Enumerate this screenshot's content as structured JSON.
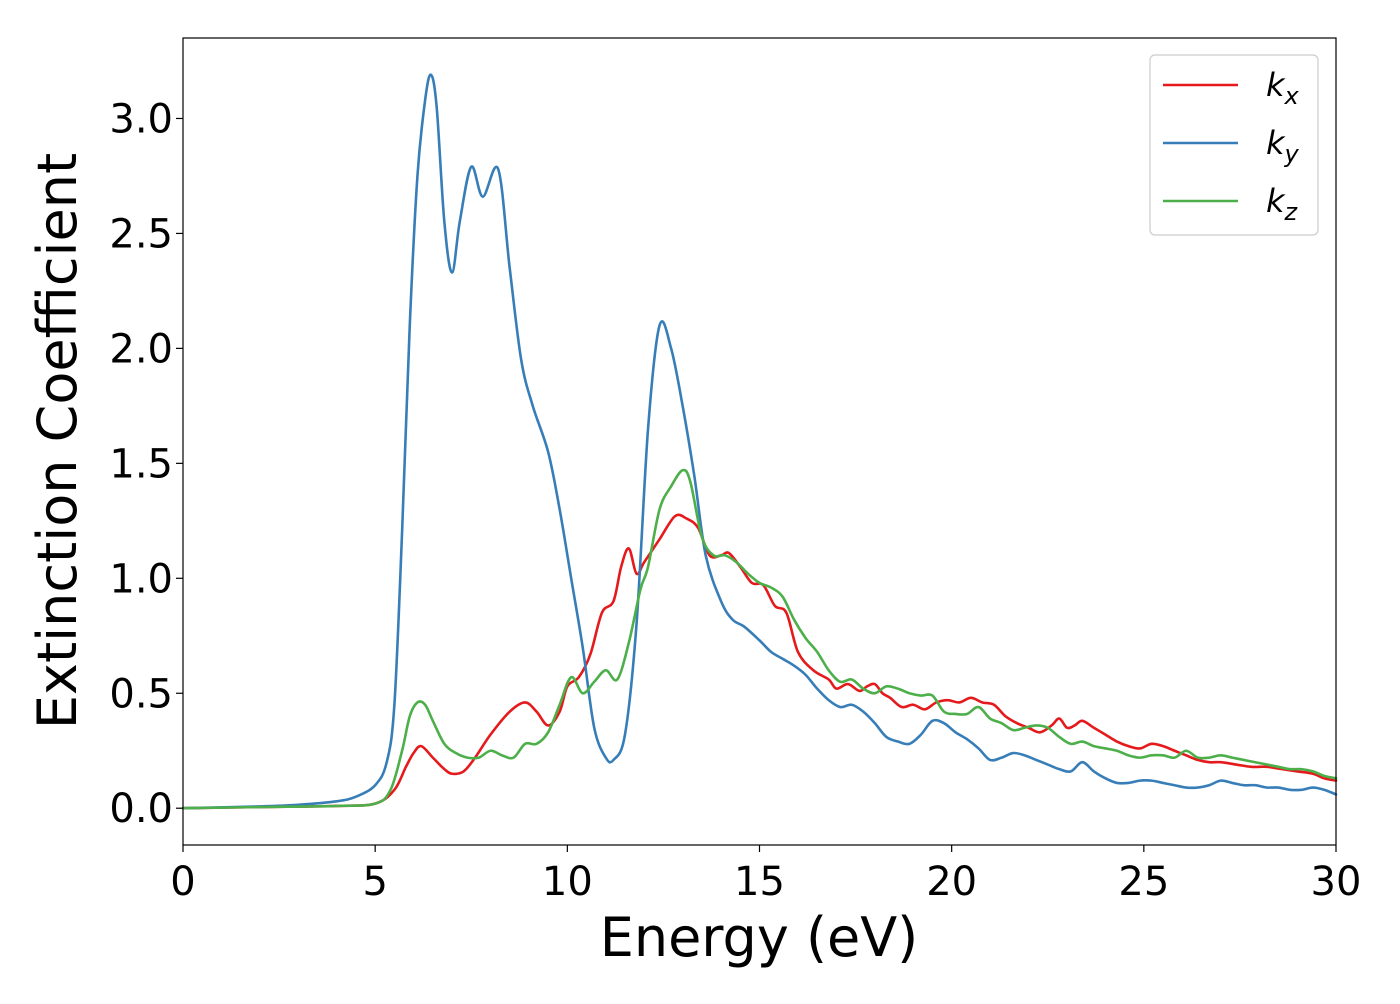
{
  "chart_data": {
    "type": "line",
    "title": "",
    "xlabel": "Energy (eV)",
    "ylabel": "Extinction Coefficient",
    "xlim": [
      0,
      30
    ],
    "ylim": [
      -0.16,
      3.35
    ],
    "xticks": [
      0,
      5,
      10,
      15,
      20,
      25,
      30
    ],
    "xtick_labels": [
      "0",
      "5",
      "10",
      "15",
      "20",
      "25",
      "30"
    ],
    "yticks": [
      0.0,
      0.5,
      1.0,
      1.5,
      2.0,
      2.5,
      3.0
    ],
    "ytick_labels": [
      "0.0",
      "0.5",
      "1.0",
      "1.5",
      "2.0",
      "2.5",
      "3.0"
    ],
    "grid": false,
    "legend_position": "top-right",
    "series": [
      {
        "name": "k_x",
        "label_base": "k",
        "label_sub": "x",
        "color": "#e41a1c",
        "x": [
          0,
          2,
          4,
          5,
          5.5,
          5.8,
          6.0,
          6.2,
          6.5,
          6.8,
          7.0,
          7.3,
          7.6,
          8.0,
          8.5,
          8.9,
          9.2,
          9.5,
          9.8,
          10.0,
          10.3,
          10.6,
          10.9,
          11.2,
          11.4,
          11.6,
          11.8,
          12.0,
          12.4,
          12.8,
          13.1,
          13.4,
          13.7,
          14.0,
          14.2,
          14.5,
          14.8,
          15.1,
          15.4,
          15.7,
          16.0,
          16.4,
          16.8,
          17.0,
          17.3,
          17.6,
          17.8,
          18.0,
          18.2,
          18.4,
          18.7,
          19.0,
          19.3,
          19.6,
          19.9,
          20.2,
          20.5,
          20.8,
          21.1,
          21.4,
          21.7,
          22.0,
          22.3,
          22.6,
          22.8,
          23.0,
          23.2,
          23.4,
          23.7,
          24.0,
          24.3,
          24.6,
          24.9,
          25.2,
          25.5,
          25.8,
          26.1,
          26.4,
          26.7,
          27.0,
          27.4,
          27.8,
          28.2,
          28.6,
          29.0,
          29.4,
          29.7,
          30.0
        ],
        "y": [
          0.0,
          0.005,
          0.01,
          0.02,
          0.08,
          0.18,
          0.24,
          0.27,
          0.22,
          0.17,
          0.15,
          0.16,
          0.22,
          0.32,
          0.42,
          0.46,
          0.42,
          0.36,
          0.42,
          0.53,
          0.57,
          0.67,
          0.85,
          0.9,
          1.05,
          1.13,
          1.02,
          1.07,
          1.17,
          1.27,
          1.26,
          1.22,
          1.1,
          1.1,
          1.11,
          1.05,
          0.98,
          0.97,
          0.88,
          0.85,
          0.68,
          0.6,
          0.56,
          0.52,
          0.54,
          0.51,
          0.53,
          0.54,
          0.5,
          0.48,
          0.44,
          0.45,
          0.43,
          0.46,
          0.47,
          0.46,
          0.48,
          0.46,
          0.45,
          0.4,
          0.37,
          0.35,
          0.33,
          0.36,
          0.39,
          0.35,
          0.36,
          0.38,
          0.35,
          0.32,
          0.29,
          0.27,
          0.26,
          0.28,
          0.27,
          0.25,
          0.23,
          0.21,
          0.2,
          0.2,
          0.19,
          0.18,
          0.18,
          0.17,
          0.16,
          0.15,
          0.13,
          0.12
        ]
      },
      {
        "name": "k_y",
        "label_base": "k",
        "label_sub": "y",
        "color": "#377eb8",
        "x": [
          0,
          2,
          3,
          4,
          4.5,
          5.0,
          5.3,
          5.5,
          5.7,
          5.9,
          6.1,
          6.3,
          6.45,
          6.6,
          6.8,
          7.0,
          7.2,
          7.5,
          7.8,
          8.2,
          8.5,
          8.8,
          9.1,
          9.5,
          9.8,
          10.1,
          10.4,
          10.7,
          11.0,
          11.2,
          11.5,
          11.8,
          12.1,
          12.4,
          12.7,
          13.0,
          13.3,
          13.6,
          14.0,
          14.3,
          14.6,
          15.0,
          15.3,
          15.6,
          15.9,
          16.2,
          16.5,
          16.8,
          17.1,
          17.4,
          17.7,
          18.0,
          18.3,
          18.6,
          18.9,
          19.2,
          19.5,
          19.8,
          20.1,
          20.4,
          20.7,
          21.0,
          21.3,
          21.6,
          21.9,
          22.2,
          22.5,
          22.8,
          23.1,
          23.4,
          23.7,
          24.0,
          24.3,
          24.6,
          24.9,
          25.2,
          25.5,
          25.8,
          26.1,
          26.4,
          26.7,
          27.0,
          27.3,
          27.6,
          27.9,
          28.2,
          28.5,
          28.8,
          29.1,
          29.4,
          29.7,
          30.0
        ],
        "y": [
          0.0,
          0.008,
          0.015,
          0.03,
          0.05,
          0.1,
          0.2,
          0.45,
          1.2,
          2.1,
          2.75,
          3.08,
          3.19,
          3.05,
          2.55,
          2.33,
          2.55,
          2.79,
          2.66,
          2.78,
          2.35,
          1.95,
          1.75,
          1.55,
          1.3,
          1.0,
          0.7,
          0.35,
          0.22,
          0.21,
          0.32,
          0.8,
          1.65,
          2.1,
          2.0,
          1.75,
          1.45,
          1.1,
          0.9,
          0.82,
          0.79,
          0.73,
          0.68,
          0.65,
          0.62,
          0.58,
          0.52,
          0.47,
          0.44,
          0.45,
          0.42,
          0.37,
          0.31,
          0.29,
          0.28,
          0.32,
          0.38,
          0.37,
          0.33,
          0.3,
          0.26,
          0.21,
          0.22,
          0.24,
          0.23,
          0.21,
          0.19,
          0.17,
          0.16,
          0.2,
          0.16,
          0.13,
          0.11,
          0.11,
          0.12,
          0.12,
          0.11,
          0.1,
          0.09,
          0.09,
          0.1,
          0.12,
          0.11,
          0.1,
          0.1,
          0.09,
          0.09,
          0.08,
          0.08,
          0.09,
          0.08,
          0.06
        ]
      },
      {
        "name": "k_z",
        "label_base": "k",
        "label_sub": "z",
        "color": "#4daf4a",
        "x": [
          0,
          2,
          4,
          5,
          5.4,
          5.7,
          5.9,
          6.1,
          6.3,
          6.5,
          6.8,
          7.1,
          7.4,
          7.7,
          8.0,
          8.3,
          8.6,
          8.9,
          9.2,
          9.5,
          9.8,
          10.1,
          10.4,
          10.7,
          11.0,
          11.3,
          11.6,
          11.9,
          12.1,
          12.4,
          12.7,
          13.0,
          13.2,
          13.5,
          13.8,
          14.1,
          14.4,
          14.7,
          15.0,
          15.3,
          15.6,
          15.9,
          16.2,
          16.5,
          16.8,
          17.1,
          17.4,
          17.7,
          18.0,
          18.3,
          18.6,
          18.9,
          19.2,
          19.5,
          19.8,
          20.1,
          20.4,
          20.7,
          21.0,
          21.3,
          21.6,
          21.9,
          22.2,
          22.5,
          22.8,
          23.1,
          23.4,
          23.7,
          24.0,
          24.3,
          24.6,
          24.9,
          25.2,
          25.5,
          25.8,
          26.1,
          26.4,
          26.7,
          27.0,
          27.3,
          27.6,
          27.9,
          28.2,
          28.5,
          28.8,
          29.1,
          29.4,
          29.7,
          30.0
        ],
        "y": [
          0.0,
          0.005,
          0.01,
          0.02,
          0.08,
          0.25,
          0.4,
          0.46,
          0.45,
          0.38,
          0.28,
          0.24,
          0.22,
          0.22,
          0.25,
          0.23,
          0.22,
          0.28,
          0.28,
          0.33,
          0.45,
          0.57,
          0.5,
          0.55,
          0.6,
          0.56,
          0.72,
          0.95,
          1.05,
          1.3,
          1.4,
          1.47,
          1.42,
          1.18,
          1.1,
          1.1,
          1.07,
          1.02,
          0.98,
          0.96,
          0.92,
          0.82,
          0.74,
          0.68,
          0.6,
          0.55,
          0.56,
          0.52,
          0.5,
          0.53,
          0.52,
          0.5,
          0.49,
          0.49,
          0.42,
          0.41,
          0.41,
          0.44,
          0.39,
          0.37,
          0.34,
          0.35,
          0.36,
          0.35,
          0.31,
          0.28,
          0.29,
          0.27,
          0.26,
          0.25,
          0.23,
          0.22,
          0.23,
          0.23,
          0.22,
          0.25,
          0.22,
          0.22,
          0.23,
          0.22,
          0.21,
          0.2,
          0.19,
          0.18,
          0.17,
          0.17,
          0.16,
          0.14,
          0.13
        ]
      }
    ]
  }
}
